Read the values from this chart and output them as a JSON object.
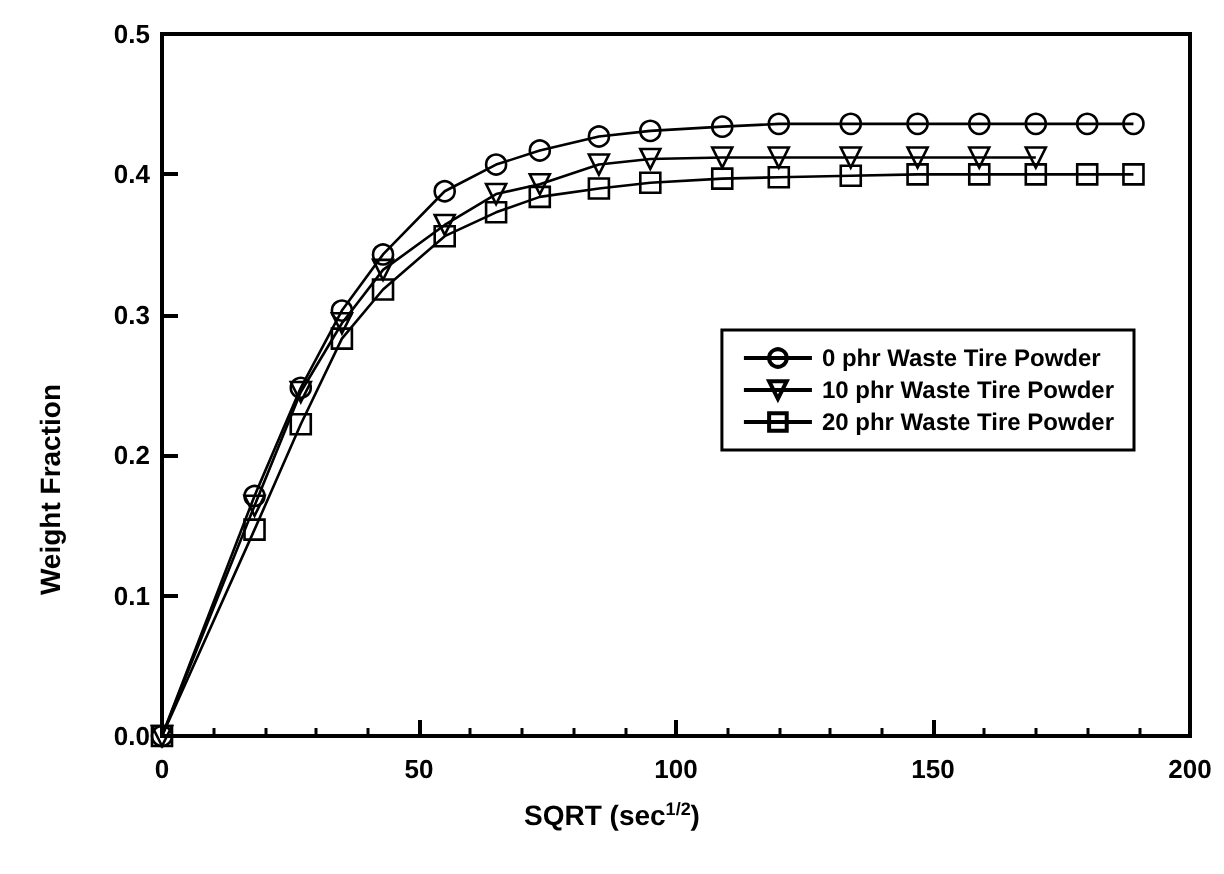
{
  "chart_data": {
    "type": "line",
    "xlabel": "SQRT (sec$^{1/2}$)",
    "ylabel": "Weight Fraction",
    "xlim": [
      0,
      200
    ],
    "xticks": [
      0,
      50,
      100,
      150,
      200
    ],
    "ylim": [
      0,
      0.5
    ],
    "yticks": [
      {
        "value": 0,
        "label": "0.0"
      },
      0.1,
      0.2,
      0.3,
      0.4,
      0.5
    ],
    "grid": false,
    "legend": "right",
    "line_style": "solid",
    "series": [
      {
        "name": "0 phr Waste Tire Powder",
        "color": "#000000",
        "marker": "circle",
        "x": [
          0,
          18,
          27,
          35,
          43,
          55,
          65,
          73.5,
          85,
          95,
          109,
          120,
          134,
          147,
          159,
          170,
          180,
          189
        ],
        "values": [
          0,
          0.171,
          0.248,
          0.303,
          0.343,
          0.388,
          0.407,
          0.417,
          0.427,
          0.431,
          0.434,
          0.436,
          0.436,
          0.436,
          0.436,
          0.436,
          0.436,
          0.436
        ]
      },
      {
        "name": "10 phr Waste Tire Powder",
        "color": "#000000",
        "marker": "triangle",
        "x": [
          0,
          18,
          27,
          35,
          43,
          55,
          65,
          73.5,
          85,
          95,
          109,
          120,
          134,
          147,
          159,
          170
        ],
        "values": [
          0,
          0.164,
          0.245,
          0.294,
          0.332,
          0.364,
          0.386,
          0.393,
          0.407,
          0.411,
          0.412,
          0.412,
          0.412,
          0.412,
          0.412,
          0.412
        ]
      },
      {
        "name": "20 phr Waste Tire Powder",
        "color": "#000000",
        "marker": "square",
        "x": [
          0,
          18,
          27,
          35,
          43,
          55,
          65,
          73.5,
          85,
          95,
          109,
          120,
          134,
          147,
          159,
          170,
          180,
          189
        ],
        "values": [
          0,
          0.147,
          0.222,
          0.283,
          0.318,
          0.356,
          0.373,
          0.384,
          0.39,
          0.394,
          0.397,
          0.398,
          0.399,
          0.4,
          0.4,
          0.4,
          0.4,
          0.4
        ]
      }
    ]
  }
}
